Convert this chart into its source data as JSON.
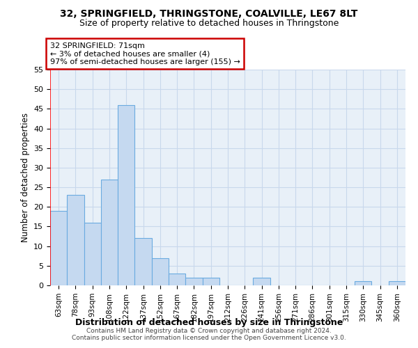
{
  "title1": "32, SPRINGFIELD, THRINGSTONE, COALVILLE, LE67 8LT",
  "title2": "Size of property relative to detached houses in Thringstone",
  "xlabel": "Distribution of detached houses by size in Thringstone",
  "ylabel": "Number of detached properties",
  "categories": [
    "63sqm",
    "78sqm",
    "93sqm",
    "108sqm",
    "122sqm",
    "137sqm",
    "152sqm",
    "167sqm",
    "182sqm",
    "197sqm",
    "212sqm",
    "226sqm",
    "241sqm",
    "256sqm",
    "271sqm",
    "286sqm",
    "301sqm",
    "315sqm",
    "330sqm",
    "345sqm",
    "360sqm"
  ],
  "values": [
    19,
    23,
    16,
    27,
    46,
    12,
    7,
    3,
    2,
    2,
    0,
    0,
    2,
    0,
    0,
    0,
    0,
    0,
    1,
    0,
    1
  ],
  "bar_color": "#c5d9f0",
  "bar_edge_color": "#6aabe0",
  "annotation_text": "32 SPRINGFIELD: 71sqm\n← 3% of detached houses are smaller (4)\n97% of semi-detached houses are larger (155) →",
  "annotation_box_color": "#ffffff",
  "annotation_box_edge": "#cc0000",
  "red_line_x": -0.5,
  "ylim": [
    0,
    55
  ],
  "yticks": [
    0,
    5,
    10,
    15,
    20,
    25,
    30,
    35,
    40,
    45,
    50,
    55
  ],
  "background_color": "#e8f0f8",
  "grid_color": "#c8d8ec",
  "footer_line1": "Contains HM Land Registry data © Crown copyright and database right 2024.",
  "footer_line2": "Contains public sector information licensed under the Open Government Licence v3.0."
}
